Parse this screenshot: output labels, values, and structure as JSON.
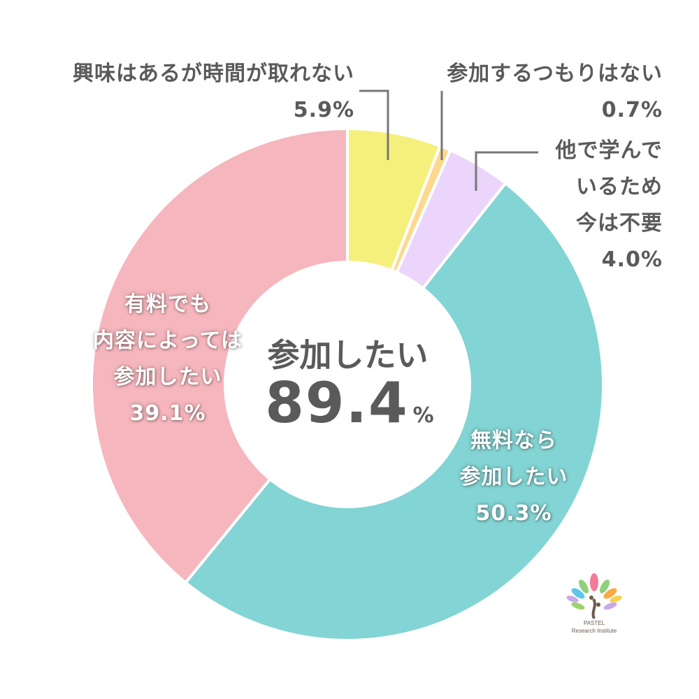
{
  "chart_data": {
    "type": "pie",
    "donut": true,
    "center_title": "参加したい",
    "center_value": "89.4",
    "center_unit": "%",
    "slices": [
      {
        "label": "興味はあるが時間が取れない",
        "value": 5.9,
        "value_label": "5.9%",
        "color": "#f5f07b"
      },
      {
        "label": "参加するつもりはない",
        "value": 0.7,
        "value_label": "0.7%",
        "color": "#fdd88f"
      },
      {
        "label": "他で学んでいるため今は不要",
        "label_lines": [
          "他で学んで",
          "いるため",
          "今は不要"
        ],
        "value": 4.0,
        "value_label": "4.0%",
        "color": "#ebd5fb"
      },
      {
        "label": "無料なら参加したい",
        "label_lines": [
          "無料なら",
          "参加したい"
        ],
        "value": 50.3,
        "value_label": "50.3%",
        "color": "#83d4d4"
      },
      {
        "label": "有料でも内容によっては参加したい",
        "label_lines": [
          "有料でも",
          "内容によっては",
          "参加したい"
        ],
        "value": 39.1,
        "value_label": "39.1%",
        "color": "#f6b6bd"
      }
    ]
  },
  "logo": {
    "line1": "PASTEL",
    "line2": "Research Institute"
  }
}
